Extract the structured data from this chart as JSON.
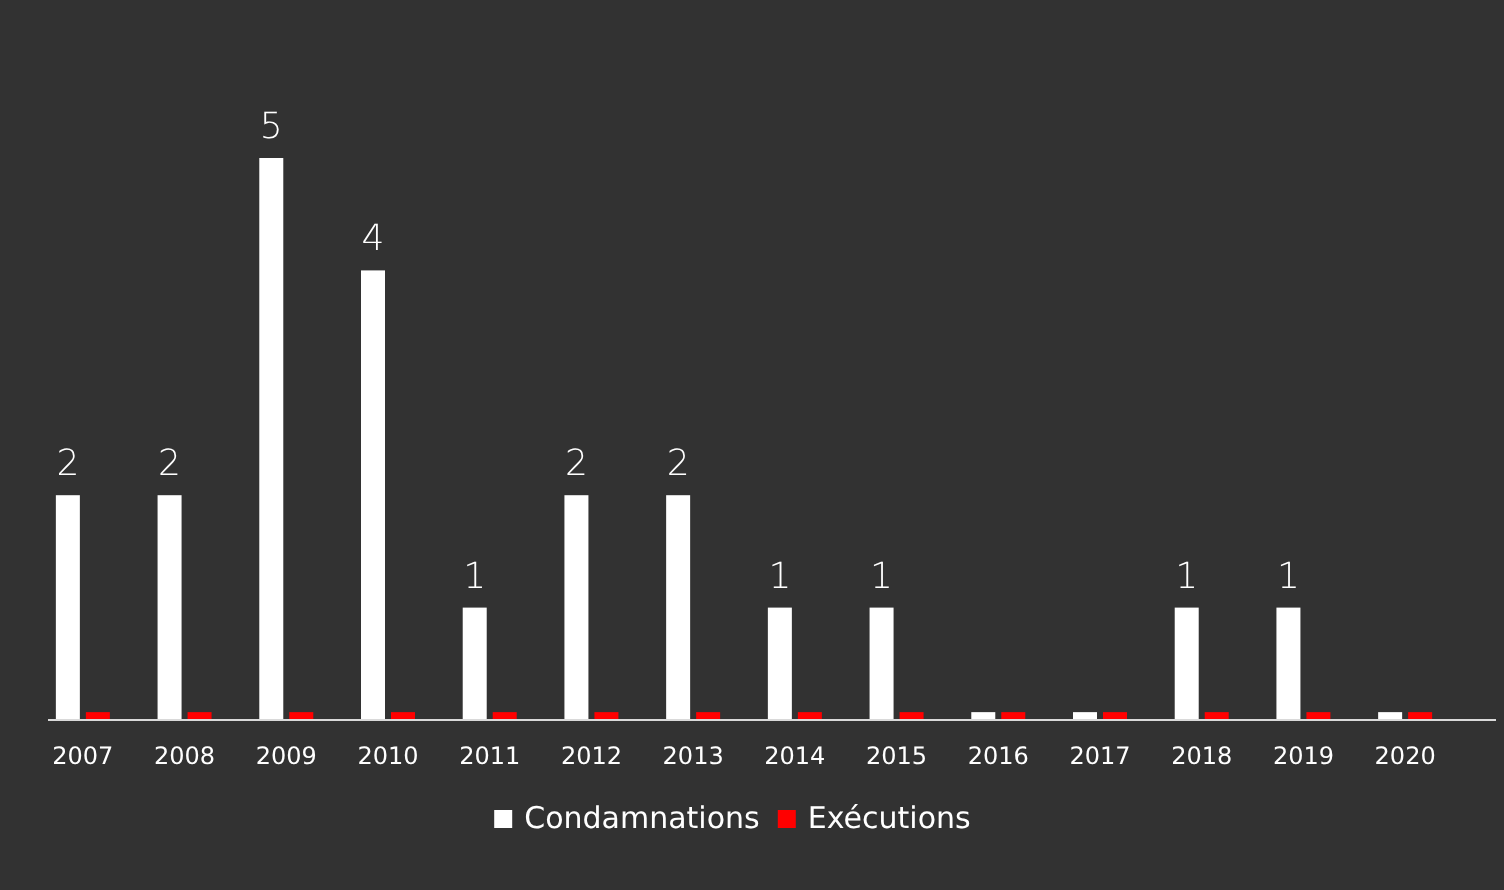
{
  "chart_data": {
    "type": "bar",
    "categories": [
      "2007",
      "2008",
      "2009",
      "2010",
      "2011",
      "2012",
      "2013",
      "2014",
      "2015",
      "2016",
      "2017",
      "2018",
      "2019",
      "2020"
    ],
    "series": [
      {
        "name": "Condamnations",
        "color": "#ffffff",
        "values": [
          2,
          2,
          5,
          4,
          1,
          2,
          2,
          1,
          1,
          0.07,
          0.07,
          1,
          1,
          0.07
        ],
        "value_labels": [
          "2",
          "2",
          "5",
          "4",
          "1",
          "2",
          "2",
          "1",
          "1",
          null,
          null,
          "1",
          "1",
          null
        ]
      },
      {
        "name": "Exécutions",
        "color": "#ff0000",
        "values": [
          0.07,
          0.07,
          0.07,
          0.07,
          0.07,
          0.07,
          0.07,
          0.07,
          0.07,
          0.07,
          0.07,
          0.07,
          0.07,
          0.07
        ]
      }
    ],
    "ylim": [
      0,
      5
    ],
    "tick_labels": "x",
    "grid": false,
    "legend": "bottom"
  }
}
